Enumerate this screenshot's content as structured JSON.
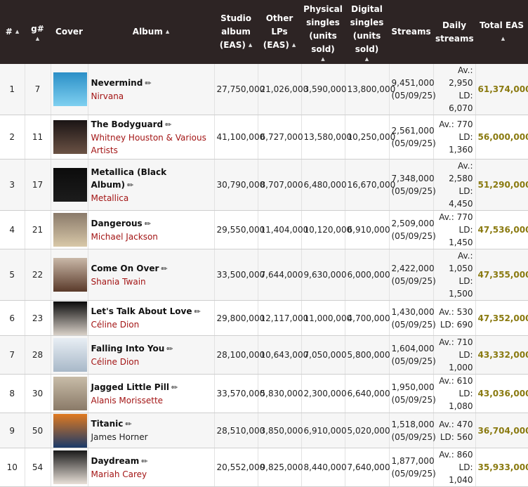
{
  "headers": {
    "rank": "#",
    "grank": "g#",
    "cover": "Cover",
    "album": "Album",
    "studio": [
      "Studio",
      "album",
      "(EAS)"
    ],
    "other": [
      "Other LPs",
      "(EAS)"
    ],
    "physical": [
      "Physical",
      "singles",
      "(units sold)"
    ],
    "digital": [
      "Digital",
      "singles",
      "(units sold)"
    ],
    "streams": "Streams",
    "daily": [
      "Daily",
      "streams"
    ],
    "total": "Total EAS"
  },
  "rows": [
    {
      "rank": "1",
      "grank": "7",
      "title": "Nevermind",
      "artist": "Nirvana",
      "artist_link": true,
      "studio": "27,750,000",
      "other": "21,026,000",
      "physical": "3,590,000",
      "digital": "13,800,000",
      "streams": "9,451,000",
      "streams_date": "(05/09/25)",
      "av": "Av.: 2,950",
      "ld": "LD: 6,070",
      "total": "61,374,000",
      "cover_colors": [
        "#2b8fc7",
        "#7fd0f0"
      ]
    },
    {
      "rank": "2",
      "grank": "11",
      "title": "The Bodyguard",
      "artist": "Whitney Houston & Various Artists",
      "artist_link": true,
      "studio": "41,100,000",
      "other": "6,727,000",
      "physical": "13,580,000",
      "digital": "10,250,000",
      "streams": "2,561,000",
      "streams_date": "(05/09/25)",
      "av": "Av.: 770",
      "ld": "LD: 1,360",
      "total": "56,000,000",
      "cover_colors": [
        "#1a1414",
        "#6b5244"
      ]
    },
    {
      "rank": "3",
      "grank": "17",
      "title": "Metallica (Black Album)",
      "artist": "Metallica",
      "artist_link": true,
      "studio": "30,790,000",
      "other": "8,707,000",
      "physical": "6,480,000",
      "digital": "16,670,000",
      "streams": "7,348,000",
      "streams_date": "(05/09/25)",
      "av": "Av.: 2,580",
      "ld": "LD: 4,450",
      "total": "51,290,000",
      "cover_colors": [
        "#0c0c0c",
        "#1c1c1c"
      ]
    },
    {
      "rank": "4",
      "grank": "21",
      "title": "Dangerous",
      "artist": "Michael Jackson",
      "artist_link": true,
      "studio": "29,550,000",
      "other": "11,404,000",
      "physical": "10,120,000",
      "digital": "6,910,000",
      "streams": "2,509,000",
      "streams_date": "(05/09/25)",
      "av": "Av.: 770",
      "ld": "LD: 1,450",
      "total": "47,536,000",
      "cover_colors": [
        "#8a7a6a",
        "#d8c8a8"
      ]
    },
    {
      "rank": "5",
      "grank": "22",
      "title": "Come On Over",
      "artist": "Shania Twain",
      "artist_link": true,
      "studio": "33,500,000",
      "other": "7,644,000",
      "physical": "9,630,000",
      "digital": "6,000,000",
      "streams": "2,422,000",
      "streams_date": "(05/09/25)",
      "av": "Av.: 1,050",
      "ld": "LD: 1,500",
      "total": "47,355,000",
      "cover_colors": [
        "#c9b8a8",
        "#5a3a2a"
      ]
    },
    {
      "rank": "6",
      "grank": "23",
      "title": "Let's Talk About Love",
      "artist": "Céline Dion",
      "artist_link": true,
      "studio": "29,800,000",
      "other": "12,117,000",
      "physical": "11,000,000",
      "digital": "4,700,000",
      "streams": "1,430,000",
      "streams_date": "(05/09/25)",
      "av": "Av.: 530",
      "ld": "LD: 690",
      "total": "47,352,000",
      "cover_colors": [
        "#0a0a0a",
        "#d8d0c8"
      ]
    },
    {
      "rank": "7",
      "grank": "28",
      "title": "Falling Into You",
      "artist": "Céline Dion",
      "artist_link": true,
      "studio": "28,100,000",
      "other": "10,643,000",
      "physical": "7,050,000",
      "digital": "5,800,000",
      "streams": "1,604,000",
      "streams_date": "(05/09/25)",
      "av": "Av.: 710",
      "ld": "LD: 1,000",
      "total": "43,332,000",
      "cover_colors": [
        "#e8eef4",
        "#a8b8c8"
      ]
    },
    {
      "rank": "8",
      "grank": "30",
      "title": "Jagged Little Pill",
      "artist": "Alanis Morissette",
      "artist_link": true,
      "studio": "33,570,000",
      "other": "5,830,000",
      "physical": "2,300,000",
      "digital": "6,640,000",
      "streams": "1,950,000",
      "streams_date": "(05/09/25)",
      "av": "Av.: 610",
      "ld": "LD: 1,080",
      "total": "43,036,000",
      "cover_colors": [
        "#c8bca8",
        "#8a7a68"
      ]
    },
    {
      "rank": "9",
      "grank": "50",
      "title": "Titanic",
      "artist": "James Horner",
      "artist_link": false,
      "studio": "28,510,000",
      "other": "3,850,000",
      "physical": "6,910,000",
      "digital": "5,020,000",
      "streams": "1,518,000",
      "streams_date": "(05/09/25)",
      "av": "Av.: 470",
      "ld": "LD: 560",
      "total": "36,704,000",
      "cover_colors": [
        "#e07a20",
        "#1a3a6a"
      ]
    },
    {
      "rank": "10",
      "grank": "54",
      "title": "Daydream",
      "artist": "Mariah Carey",
      "artist_link": true,
      "studio": "20,552,000",
      "other": "9,825,000",
      "physical": "8,440,000",
      "digital": "7,640,000",
      "streams": "1,877,000",
      "streams_date": "(05/09/25)",
      "av": "Av.: 860",
      "ld": "LD: 1,040",
      "total": "35,933,000",
      "cover_colors": [
        "#1a1a1a",
        "#e8e0d8"
      ]
    }
  ]
}
